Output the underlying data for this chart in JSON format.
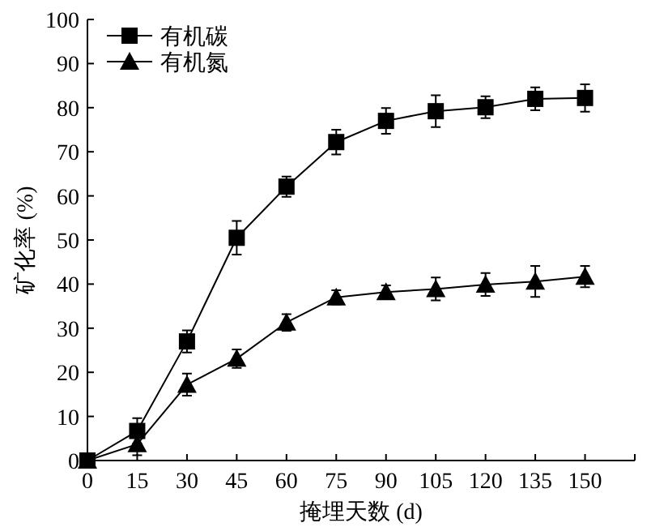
{
  "chart_data": {
    "type": "line",
    "xlabel": "掩埋天数 (d)",
    "ylabel": "矿化率 (%)",
    "x": [
      0,
      15,
      30,
      45,
      60,
      75,
      90,
      105,
      120,
      135,
      150
    ],
    "xlim": [
      0,
      165
    ],
    "xticks": [
      0,
      15,
      30,
      45,
      60,
      75,
      90,
      105,
      120,
      135,
      150,
      {
        "value": 165,
        "label": null
      }
    ],
    "ylim": [
      0,
      100
    ],
    "yticks": [
      0,
      10,
      20,
      30,
      40,
      50,
      60,
      70,
      80,
      90,
      100
    ],
    "grid": false,
    "legend": "top left",
    "line_style": "solid",
    "series": [
      {
        "name": "有机碳",
        "color": "#000000",
        "marker": "square",
        "values": [
          0,
          6.7,
          27,
          50.5,
          62.1,
          72.2,
          77,
          79.2,
          80.1,
          82,
          82.2
        ],
        "errors": [
          null,
          2.9,
          2.5,
          3.8,
          2.3,
          2.8,
          2.9,
          3.6,
          2.5,
          2.6,
          3.1
        ]
      },
      {
        "name": "有机氮",
        "color": "#000000",
        "marker": "triangle",
        "values": [
          0,
          3.7,
          17.2,
          23.1,
          31.3,
          37,
          38.2,
          38.9,
          39.9,
          40.6,
          41.7
        ],
        "errors": [
          null,
          2.5,
          2.5,
          2.1,
          1.9,
          1.6,
          1.5,
          2.6,
          2.6,
          3.5,
          2.4
        ]
      }
    ]
  }
}
